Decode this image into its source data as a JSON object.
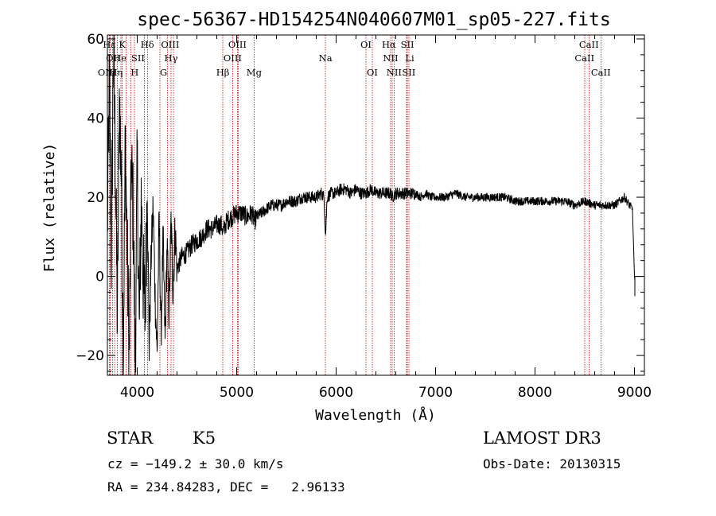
{
  "chart_data": {
    "type": "line",
    "title": "spec-56367-HD154254N040607M01_sp05-227.fits",
    "xlabel": "Wavelength (Å)",
    "ylabel": "Flux (relative)",
    "xlim": [
      3700,
      9100
    ],
    "ylim": [
      -25,
      61
    ],
    "xticks": [
      4000,
      5000,
      6000,
      7000,
      8000,
      9000
    ],
    "yticks": [
      -20,
      0,
      20,
      40,
      60
    ],
    "xtick_labels": [
      "4000",
      "5000",
      "6000",
      "7000",
      "8000",
      "9000"
    ],
    "ytick_labels": [
      "−20",
      "0",
      "20",
      "40",
      "60"
    ],
    "series": [
      {
        "name": "flux",
        "x": [
          3700,
          3720,
          3740,
          3760,
          3780,
          3800,
          3820,
          3840,
          3860,
          3880,
          3900,
          3920,
          3940,
          3960,
          3980,
          4000,
          4020,
          4040,
          4060,
          4080,
          4100,
          4120,
          4140,
          4160,
          4180,
          4200,
          4220,
          4240,
          4260,
          4280,
          4300,
          4320,
          4340,
          4360,
          4380,
          4400,
          4450,
          4500,
          4550,
          4600,
          4650,
          4700,
          4750,
          4800,
          4850,
          4860,
          4900,
          4950,
          5000,
          5050,
          5100,
          5150,
          5180,
          5200,
          5250,
          5300,
          5350,
          5400,
          5450,
          5500,
          5550,
          5600,
          5650,
          5700,
          5750,
          5800,
          5850,
          5880,
          5893,
          5910,
          5950,
          6000,
          6050,
          6100,
          6150,
          6200,
          6250,
          6300,
          6350,
          6400,
          6450,
          6500,
          6550,
          6563,
          6600,
          6650,
          6700,
          6750,
          6800,
          6850,
          6900,
          6950,
          7000,
          7100,
          7200,
          7300,
          7400,
          7500,
          7600,
          7700,
          7800,
          7900,
          8000,
          8100,
          8200,
          8300,
          8400,
          8500,
          8600,
          8700,
          8800,
          8850,
          8900,
          8950,
          8980,
          9000,
          9020
        ],
        "y": [
          12,
          50,
          5,
          58,
          30,
          -12,
          45,
          25,
          -20,
          35,
          5,
          -22,
          28,
          15,
          -24,
          30,
          -15,
          20,
          0,
          -10,
          24,
          -18,
          5,
          18,
          -5,
          -20,
          15,
          -15,
          10,
          -17,
          8,
          -10,
          14,
          -4,
          12,
          2,
          5,
          6,
          8,
          9,
          10,
          12,
          12,
          13,
          13,
          11,
          14,
          15,
          16,
          16,
          15,
          16,
          14,
          15,
          16,
          17,
          18,
          18,
          18,
          19,
          19,
          19,
          20,
          20,
          20,
          20,
          21,
          20,
          10,
          20,
          21,
          21,
          22,
          22,
          21,
          22,
          21,
          21,
          22,
          21,
          21,
          21,
          21,
          20,
          21,
          21,
          21,
          21,
          21,
          20,
          21,
          20,
          20,
          20,
          21,
          20,
          20,
          20,
          20,
          20,
          19,
          19,
          19,
          19,
          19,
          19,
          18,
          19,
          18,
          18,
          18,
          19,
          20,
          18,
          17,
          0,
          -5
        ]
      }
    ],
    "line_markers": [
      {
        "label": "Hε",
        "x": 3718,
        "row": 1,
        "dx": 0
      },
      {
        "label": "K",
        "x": 3849,
        "row": 1,
        "dx": 0
      },
      {
        "label": "Hδ",
        "x": 4102,
        "row": 1,
        "dx": 0
      },
      {
        "label": "OIII",
        "x": 4363,
        "row": 1,
        "dx": -4
      },
      {
        "label": "OIII",
        "x": 5007,
        "row": 1,
        "dx": 0
      },
      {
        "label": "OI",
        "x": 6300,
        "row": 1,
        "dx": 0
      },
      {
        "label": "Hα",
        "x": 6563,
        "row": 1,
        "dx": -4
      },
      {
        "label": "SII",
        "x": 6717,
        "row": 1,
        "dx": 0
      },
      {
        "label": "CaII",
        "x": 8542,
        "row": 1,
        "dx": 0
      },
      {
        "label": "OII",
        "x": 3727,
        "row": 2,
        "dx": 4
      },
      {
        "label": "He",
        "x": 3889,
        "row": 2,
        "dx": -8
      },
      {
        "label": "SII",
        "x": 4072,
        "row": 2,
        "dx": -8
      },
      {
        "label": "Hγ",
        "x": 4340,
        "row": 2,
        "dx": 0
      },
      {
        "label": "OIII",
        "x": 4959,
        "row": 2,
        "dx": 0
      },
      {
        "label": "Na",
        "x": 5893,
        "row": 2,
        "dx": 0
      },
      {
        "label": "NII",
        "x": 6548,
        "row": 2,
        "dx": 0
      },
      {
        "label": "Li",
        "x": 6708,
        "row": 2,
        "dx": 4
      },
      {
        "label": "CaII",
        "x": 8498,
        "row": 2,
        "dx": 0
      },
      {
        "label": "OIII",
        "x": 3727,
        "row": 3,
        "dx": -4
      },
      {
        "label": "Hη",
        "x": 3835,
        "row": 3,
        "dx": -6
      },
      {
        "label": "H",
        "x": 3934,
        "row": 3,
        "dx": 5
      },
      {
        "label": "G",
        "x": 4305,
        "row": 3,
        "dx": -5
      },
      {
        "label": "Hβ",
        "x": 4861,
        "row": 3,
        "dx": 0
      },
      {
        "label": "Mg",
        "x": 5175,
        "row": 3,
        "dx": 0
      },
      {
        "label": "OI",
        "x": 6364,
        "row": 3,
        "dx": 0
      },
      {
        "label": "NII",
        "x": 6583,
        "row": 3,
        "dx": 0
      },
      {
        "label": "SII",
        "x": 6731,
        "row": 3,
        "dx": 0
      },
      {
        "label": "CaII",
        "x": 8662,
        "row": 3,
        "dx": 0
      }
    ],
    "extra_marker_lines": [
      3750,
      3771,
      3798,
      3970,
      4226,
      5016,
      6716,
      6731
    ]
  },
  "info": {
    "object_class": "STAR",
    "subclass": "K5",
    "survey": "LAMOST DR3",
    "cz_line": "cz = −149.2 ± 30.0 km/s",
    "obs_date_line": "Obs-Date: 20130315",
    "radec_line": "RA = 234.84283, DEC =   2.96133"
  },
  "colors": {
    "background": "#ffffff",
    "axis": "#000000",
    "spectrum": "#000000",
    "marker_line": "#cc0000"
  }
}
